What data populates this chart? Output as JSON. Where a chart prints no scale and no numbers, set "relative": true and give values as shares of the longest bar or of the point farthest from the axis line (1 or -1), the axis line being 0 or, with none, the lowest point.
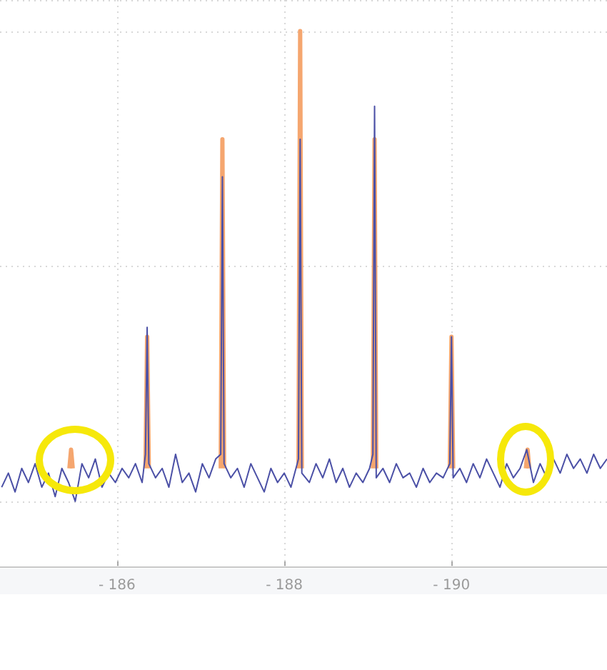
{
  "chart_data": {
    "type": "line",
    "relative": true,
    "grid": true,
    "legend": false,
    "marker": "none",
    "line_style": "solid",
    "xlim": [
      -184.6,
      -191.86
    ],
    "xticks": [
      {
        "value": -186,
        "label": "- 186"
      },
      {
        "value": -188,
        "label": "- 188"
      },
      {
        "value": -190,
        "label": "- 190"
      }
    ],
    "series": [
      {
        "color": "#4b50a6",
        "x": [
          -184.62,
          -184.7,
          -184.78,
          -184.86,
          -184.94,
          -185.02,
          -185.1,
          -185.18,
          -185.26,
          -185.34,
          -185.42,
          -185.5,
          -185.58,
          -185.66,
          -185.74,
          -185.82,
          -185.9,
          -185.98,
          -186.06,
          -186.14,
          -186.22,
          -186.3,
          -186.34,
          -186.36,
          -186.38,
          -186.46,
          -186.54,
          -186.62,
          -186.7,
          -186.78,
          -186.86,
          -186.94,
          -187.02,
          -187.1,
          -187.18,
          -187.24,
          -187.26,
          -187.28,
          -187.36,
          -187.44,
          -187.52,
          -187.6,
          -187.68,
          -187.76,
          -187.84,
          -187.92,
          -188,
          -188.08,
          -188.17,
          -188.19,
          -188.21,
          -188.3,
          -188.38,
          -188.46,
          -188.54,
          -188.62,
          -188.7,
          -188.78,
          -188.86,
          -188.94,
          -189.02,
          -189.06,
          -189.08,
          -189.1,
          -189.18,
          -189.26,
          -189.34,
          -189.42,
          -189.5,
          -189.58,
          -189.66,
          -189.74,
          -189.82,
          -189.9,
          -189.98,
          -190,
          -190.02,
          -190.1,
          -190.18,
          -190.26,
          -190.34,
          -190.42,
          -190.5,
          -190.58,
          -190.66,
          -190.74,
          -190.82,
          -190.9,
          -190.98,
          -191.06,
          -191.14,
          -191.22,
          -191.3,
          -191.38,
          -191.46,
          -191.54,
          -191.62,
          -191.7,
          -191.78,
          -191.86
        ],
        "values": [
          0.03,
          0.06,
          0.02,
          0.07,
          0.04,
          0.08,
          0.03,
          0.06,
          0.01,
          0.07,
          0.04,
          0,
          0.08,
          0.05,
          0.09,
          0.03,
          0.06,
          0.04,
          0.07,
          0.05,
          0.08,
          0.04,
          0.1,
          0.37,
          0.08,
          0.05,
          0.07,
          0.03,
          0.1,
          0.04,
          0.06,
          0.02,
          0.08,
          0.05,
          0.09,
          0.1,
          0.69,
          0.08,
          0.05,
          0.07,
          0.03,
          0.08,
          0.05,
          0.02,
          0.07,
          0.04,
          0.06,
          0.03,
          0.09,
          0.77,
          0.06,
          0.04,
          0.08,
          0.05,
          0.09,
          0.04,
          0.07,
          0.03,
          0.06,
          0.04,
          0.07,
          0.1,
          0.84,
          0.05,
          0.07,
          0.04,
          0.08,
          0.05,
          0.06,
          0.03,
          0.07,
          0.04,
          0.06,
          0.05,
          0.08,
          0.35,
          0.05,
          0.07,
          0.04,
          0.08,
          0.05,
          0.09,
          0.06,
          0.03,
          0.08,
          0.05,
          0.07,
          0.11,
          0.04,
          0.08,
          0.05,
          0.09,
          0.06,
          0.1,
          0.07,
          0.09,
          0.06,
          0.1,
          0.07,
          0.09
        ]
      },
      {
        "color": "#f5a66f",
        "x": [
          -185.43,
          -185.45,
          -185.47,
          -185.9,
          -186.34,
          -186.36,
          -186.38,
          -186.8,
          -187.24,
          -187.26,
          -187.28,
          -187.7,
          -188.17,
          -188.19,
          -188.21,
          -188.6,
          -189.06,
          -189.08,
          -189.1,
          -189.5,
          -189.98,
          -190,
          -190.02,
          -190.5,
          -190.89,
          -190.91,
          -190.93
        ],
        "values": [
          0.07,
          0.11,
          0.07,
          null,
          0.07,
          0.35,
          0.07,
          null,
          0.07,
          0.77,
          0.07,
          null,
          0.07,
          1,
          0.07,
          null,
          0.07,
          0.77,
          0.07,
          null,
          0.07,
          0.35,
          0.07,
          null,
          0.07,
          0.11,
          0.07
        ]
      }
    ]
  }
}
